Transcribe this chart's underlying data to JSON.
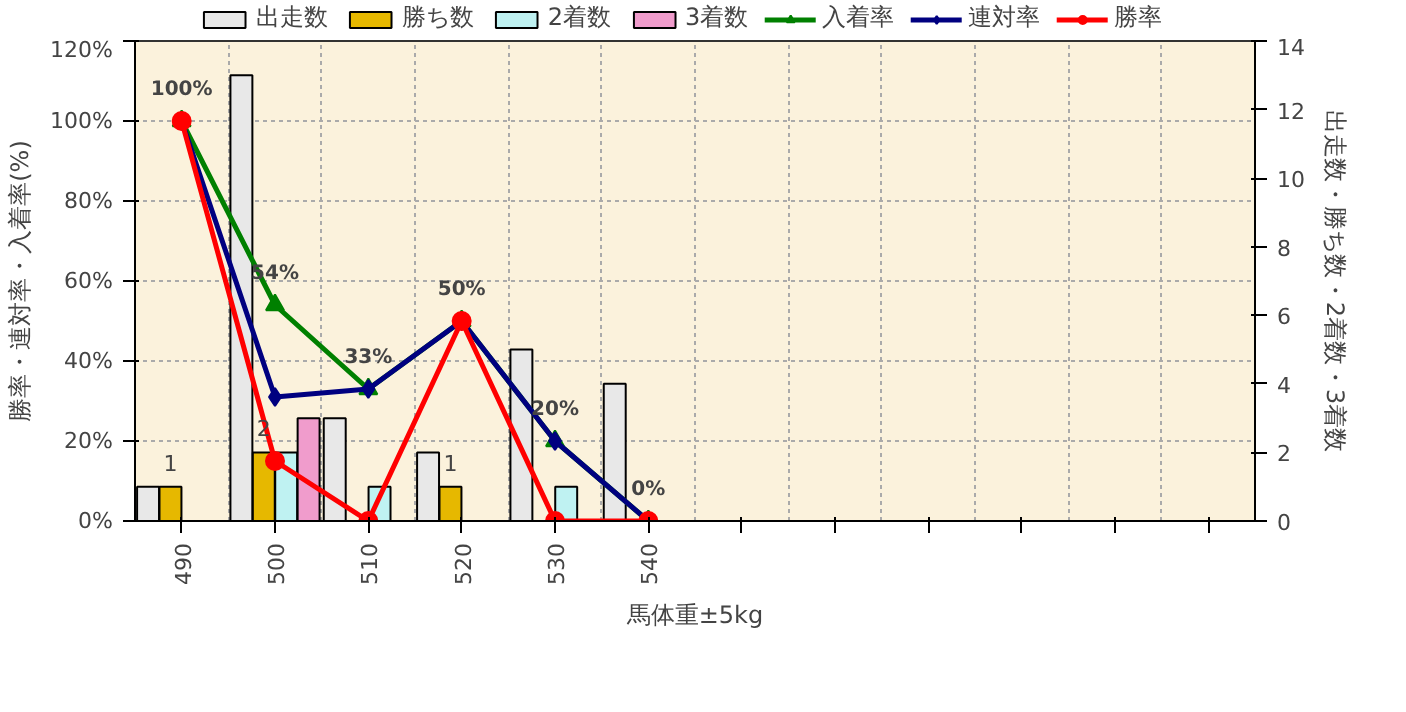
{
  "chart_data": {
    "type": "bar",
    "xlabel": "馬体重±5kg",
    "ylabel": "勝率・連対率・入着率(%)",
    "y2label": "出走数・勝ち数・2着数・3着数",
    "categories": [
      "490",
      "500",
      "510",
      "520",
      "530",
      "540",
      null,
      null,
      null,
      null,
      null,
      null
    ],
    "series": [
      {
        "name": "出走数",
        "axis": "y2",
        "color": "#e8e8e8",
        "values": [
          1,
          13,
          3,
          2,
          5,
          4,
          null,
          null,
          null,
          null,
          null,
          null
        ]
      },
      {
        "name": "勝ち数",
        "axis": "y2",
        "color": "#e6b800",
        "values": [
          1,
          2,
          0,
          1,
          0,
          0,
          null,
          null,
          null,
          null,
          null,
          null
        ],
        "value_labels": [
          "1",
          "2",
          null,
          "1",
          null,
          null,
          null,
          null,
          null,
          null,
          null,
          null
        ]
      },
      {
        "name": "2着数",
        "axis": "y2",
        "color": "#bff2f2",
        "values": [
          0,
          2,
          1,
          0,
          1,
          0,
          null,
          null,
          null,
          null,
          null,
          null
        ]
      },
      {
        "name": "3着数",
        "axis": "y2",
        "color": "#f09ccc",
        "values": [
          0,
          3,
          0,
          0,
          0,
          0,
          null,
          null,
          null,
          null,
          null,
          null
        ]
      },
      {
        "name": "入着率",
        "type": "line",
        "color": "#008000",
        "marker": "triangle",
        "values": [
          100,
          54,
          33,
          50,
          20,
          0,
          null,
          null,
          null,
          null,
          null,
          null
        ],
        "value_labels": [
          "100%",
          "54%",
          "33%",
          "50%",
          "20%",
          "0%",
          null,
          null,
          null,
          null,
          null,
          null
        ]
      },
      {
        "name": "連対率",
        "type": "line",
        "color": "#000080",
        "marker": "diamond",
        "values": [
          100,
          31,
          33,
          50,
          20,
          0,
          null,
          null,
          null,
          null,
          null,
          null
        ]
      },
      {
        "name": "勝率",
        "type": "line",
        "color": "#ff0000",
        "marker": "circle",
        "values": [
          100,
          15,
          0,
          50,
          0,
          0,
          null,
          null,
          null,
          null,
          null,
          null
        ]
      }
    ],
    "ylim": [
      0,
      120
    ],
    "yticks": [
      {
        "value": 0,
        "label": "0%"
      },
      {
        "value": 20,
        "label": "20%"
      },
      {
        "value": 40,
        "label": "40%"
      },
      {
        "value": 60,
        "label": "60%"
      },
      {
        "value": 80,
        "label": "80%"
      },
      {
        "value": 100,
        "label": "100%"
      },
      {
        "value": 120,
        "label": "120%"
      }
    ],
    "y2lim": [
      0,
      14
    ],
    "y2ticks": [
      0,
      2,
      4,
      6,
      8,
      10,
      12,
      14
    ],
    "grid": true,
    "legend": "top",
    "line_style": "solid"
  }
}
